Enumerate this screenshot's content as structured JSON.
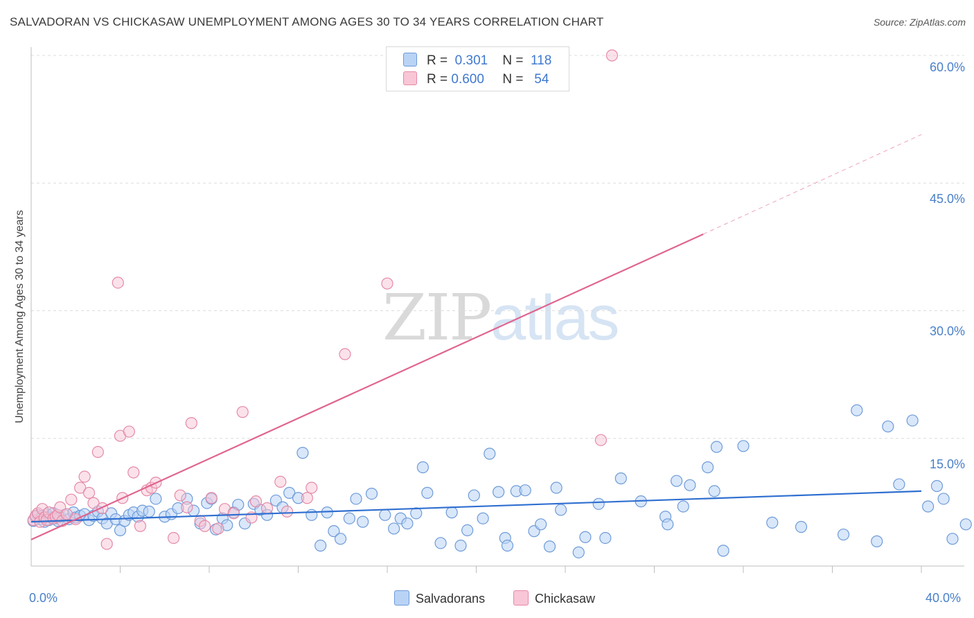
{
  "title": "SALVADORAN VS CHICKASAW UNEMPLOYMENT AMONG AGES 30 TO 34 YEARS CORRELATION CHART",
  "source": "Source: ZipAtlas.com",
  "watermark": {
    "zip": "ZIP",
    "atlas": "atlas"
  },
  "legend_top": {
    "row1": {
      "r_label": "R =",
      "r_value": "0.301",
      "n_label": "N =",
      "n_value": "118"
    },
    "row2": {
      "r_label": "R =",
      "r_value": "0.600",
      "n_label": "N =",
      "n_value": "54"
    }
  },
  "colors": {
    "blue_fill": "#b9d3f5",
    "blue_stroke": "#6e9bd8",
    "blue_line": "#2f6fd0",
    "pink_fill": "#f8c6d6",
    "pink_stroke": "#e58aa7",
    "pink_line": "#e0648e",
    "tick_text": "#4a80c8",
    "grid": "#dcdcdc"
  },
  "chart_data": {
    "type": "scatter",
    "title": "SALVADORAN VS CHICKASAW UNEMPLOYMENT AMONG AGES 30 TO 34 YEARS CORRELATION CHART",
    "xlabel": "",
    "ylabel": "Unemployment Among Ages 30 to 34 years",
    "xlim": [
      0,
      40
    ],
    "ylim": [
      0,
      62
    ],
    "x_tick_labels": [
      "0.0%",
      "40.0%"
    ],
    "y_ticks": [
      15,
      30,
      45,
      60
    ],
    "y_tick_labels": [
      "15.0%",
      "30.0%",
      "45.0%",
      "60.0%"
    ],
    "legend": [
      "Salvadorans",
      "Chickasaw"
    ],
    "series": [
      {
        "name": "Salvadorans",
        "r": 0.301,
        "n": 118,
        "trend": {
          "x0": 0,
          "y0": 5.2,
          "x1": 40,
          "y1": 8.8
        },
        "points": [
          [
            0.1,
            5.3
          ],
          [
            0.2,
            5.8
          ],
          [
            0.3,
            6.0
          ],
          [
            0.4,
            5.5
          ],
          [
            0.5,
            5.9
          ],
          [
            0.6,
            5.2
          ],
          [
            0.7,
            6.1
          ],
          [
            0.8,
            5.4
          ],
          [
            0.9,
            5.7
          ],
          [
            1.0,
            6.2
          ],
          [
            1.1,
            5.6
          ],
          [
            1.2,
            5.3
          ],
          [
            1.3,
            5.8
          ],
          [
            1.5,
            6.0
          ],
          [
            1.7,
            5.5
          ],
          [
            1.9,
            6.3
          ],
          [
            2.0,
            5.7
          ],
          [
            2.2,
            5.9
          ],
          [
            2.4,
            6.1
          ],
          [
            2.6,
            5.4
          ],
          [
            2.8,
            5.9
          ],
          [
            3.0,
            6.4
          ],
          [
            3.2,
            5.6
          ],
          [
            3.4,
            5.0
          ],
          [
            3.6,
            6.2
          ],
          [
            3.8,
            5.5
          ],
          [
            4.0,
            4.2
          ],
          [
            4.2,
            5.3
          ],
          [
            4.4,
            6.0
          ],
          [
            4.6,
            6.3
          ],
          [
            4.8,
            5.8
          ],
          [
            5.0,
            6.5
          ],
          [
            5.3,
            6.4
          ],
          [
            5.6,
            7.9
          ],
          [
            6.0,
            5.8
          ],
          [
            6.3,
            6.1
          ],
          [
            6.6,
            6.8
          ],
          [
            7.0,
            7.9
          ],
          [
            7.3,
            6.5
          ],
          [
            7.6,
            5.0
          ],
          [
            7.9,
            7.4
          ],
          [
            8.1,
            7.9
          ],
          [
            8.3,
            4.3
          ],
          [
            8.6,
            5.6
          ],
          [
            8.8,
            4.8
          ],
          [
            9.1,
            6.3
          ],
          [
            9.3,
            7.2
          ],
          [
            9.6,
            5.0
          ],
          [
            10.0,
            7.3
          ],
          [
            10.3,
            6.6
          ],
          [
            10.6,
            6.0
          ],
          [
            11.0,
            7.7
          ],
          [
            11.3,
            6.9
          ],
          [
            11.6,
            8.6
          ],
          [
            12.0,
            8.0
          ],
          [
            12.2,
            13.3
          ],
          [
            12.6,
            6.0
          ],
          [
            13.0,
            2.4
          ],
          [
            13.3,
            6.3
          ],
          [
            13.6,
            4.1
          ],
          [
            13.9,
            3.2
          ],
          [
            14.3,
            5.6
          ],
          [
            14.6,
            7.9
          ],
          [
            14.9,
            5.2
          ],
          [
            15.3,
            8.5
          ],
          [
            15.9,
            6.0
          ],
          [
            16.3,
            4.4
          ],
          [
            16.6,
            5.6
          ],
          [
            16.9,
            5.0
          ],
          [
            17.3,
            6.2
          ],
          [
            17.6,
            11.6
          ],
          [
            17.8,
            8.6
          ],
          [
            18.4,
            2.7
          ],
          [
            18.9,
            6.3
          ],
          [
            19.3,
            2.4
          ],
          [
            19.6,
            4.2
          ],
          [
            19.9,
            8.3
          ],
          [
            20.3,
            5.6
          ],
          [
            20.6,
            13.2
          ],
          [
            21.0,
            8.7
          ],
          [
            21.3,
            3.3
          ],
          [
            21.4,
            2.4
          ],
          [
            21.8,
            8.8
          ],
          [
            22.2,
            8.9
          ],
          [
            22.6,
            4.1
          ],
          [
            22.9,
            4.9
          ],
          [
            23.3,
            2.3
          ],
          [
            23.6,
            9.2
          ],
          [
            23.8,
            6.6
          ],
          [
            24.6,
            1.6
          ],
          [
            24.9,
            3.4
          ],
          [
            25.5,
            7.3
          ],
          [
            25.8,
            3.3
          ],
          [
            26.5,
            10.3
          ],
          [
            27.4,
            7.6
          ],
          [
            28.5,
            5.8
          ],
          [
            28.6,
            4.9
          ],
          [
            29.0,
            10.0
          ],
          [
            29.3,
            7.0
          ],
          [
            29.6,
            9.5
          ],
          [
            30.4,
            11.6
          ],
          [
            30.7,
            8.8
          ],
          [
            30.8,
            14.0
          ],
          [
            31.1,
            1.8
          ],
          [
            32.0,
            14.1
          ],
          [
            33.3,
            5.1
          ],
          [
            34.6,
            4.6
          ],
          [
            36.5,
            3.7
          ],
          [
            37.1,
            18.3
          ],
          [
            38.0,
            2.9
          ],
          [
            38.5,
            16.4
          ],
          [
            39.0,
            9.6
          ],
          [
            39.6,
            17.1
          ],
          [
            40.3,
            7.0
          ],
          [
            40.7,
            9.4
          ],
          [
            41.0,
            7.9
          ],
          [
            41.4,
            3.2
          ],
          [
            42.0,
            4.9
          ]
        ]
      },
      {
        "name": "Chickasaw",
        "r": 0.6,
        "n": 54,
        "trend": {
          "x0": 0,
          "y0": 3.1,
          "x1": 30.2,
          "y1": 39.0
        },
        "trend_dashed": {
          "x0": 30.2,
          "y0": 39.0,
          "x1": 40,
          "y1": 50.7
        },
        "points": [
          [
            0.1,
            5.4
          ],
          [
            0.2,
            5.9
          ],
          [
            0.3,
            6.2
          ],
          [
            0.4,
            5.2
          ],
          [
            0.5,
            6.7
          ],
          [
            0.6,
            5.7
          ],
          [
            0.7,
            5.4
          ],
          [
            0.8,
            6.3
          ],
          [
            1.0,
            5.6
          ],
          [
            1.1,
            5.8
          ],
          [
            1.2,
            6.0
          ],
          [
            1.3,
            6.9
          ],
          [
            1.4,
            5.3
          ],
          [
            1.6,
            6.1
          ],
          [
            1.8,
            7.8
          ],
          [
            2.0,
            5.5
          ],
          [
            2.2,
            9.2
          ],
          [
            2.4,
            10.5
          ],
          [
            2.6,
            8.6
          ],
          [
            2.8,
            7.4
          ],
          [
            3.0,
            13.4
          ],
          [
            3.2,
            6.8
          ],
          [
            3.4,
            2.6
          ],
          [
            3.9,
            33.3
          ],
          [
            4.0,
            15.3
          ],
          [
            4.1,
            8.0
          ],
          [
            4.4,
            15.8
          ],
          [
            4.6,
            11.0
          ],
          [
            4.9,
            4.7
          ],
          [
            5.2,
            8.9
          ],
          [
            5.4,
            9.2
          ],
          [
            5.6,
            9.8
          ],
          [
            6.4,
            3.3
          ],
          [
            6.7,
            8.3
          ],
          [
            7.0,
            6.9
          ],
          [
            7.2,
            16.8
          ],
          [
            7.6,
            5.3
          ],
          [
            7.8,
            4.7
          ],
          [
            8.1,
            8.0
          ],
          [
            8.4,
            4.4
          ],
          [
            8.7,
            6.7
          ],
          [
            9.1,
            6.2
          ],
          [
            9.5,
            18.1
          ],
          [
            9.9,
            5.7
          ],
          [
            10.1,
            7.6
          ],
          [
            10.6,
            6.8
          ],
          [
            11.2,
            9.9
          ],
          [
            11.5,
            6.4
          ],
          [
            12.4,
            8.0
          ],
          [
            12.6,
            9.2
          ],
          [
            14.1,
            24.9
          ],
          [
            16.0,
            33.2
          ],
          [
            25.6,
            14.8
          ],
          [
            26.1,
            60.0
          ]
        ]
      }
    ]
  },
  "axis": {
    "y_label": "Unemployment Among Ages 30 to 34 years",
    "x_min_label": "0.0%",
    "x_max_label": "40.0%",
    "y_ticks": [
      "15.0%",
      "30.0%",
      "45.0%",
      "60.0%"
    ]
  },
  "bottom_legend": {
    "salvadorans": "Salvadorans",
    "chickasaw": "Chickasaw"
  }
}
